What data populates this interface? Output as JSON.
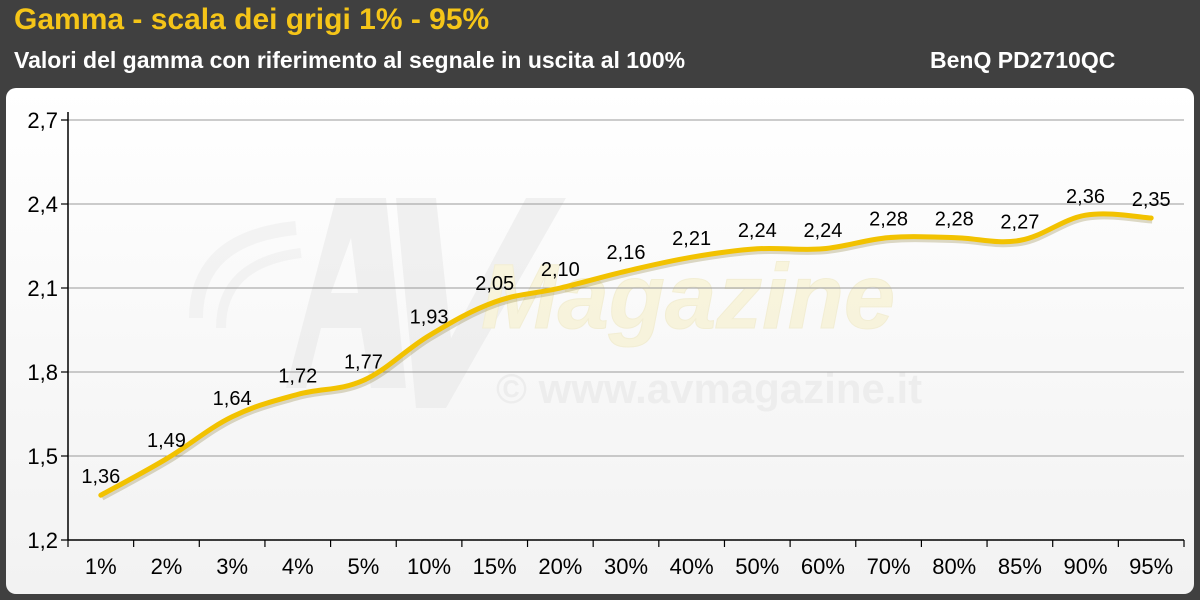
{
  "header": {
    "title": "Gamma - scala dei grigi 1% - 95%",
    "subtitle": "Valori del gamma con riferimento al segnale in uscita al 100%",
    "model": "BenQ PD2710QC"
  },
  "watermark": {
    "logo_text": "Magazine",
    "url_text": "© www.avmagazine.it"
  },
  "colors": {
    "background": "#404040",
    "title": "#f5c518",
    "line": "#f2c200",
    "grid": "#9a9a9a"
  },
  "chart_data": {
    "type": "line",
    "title": "Gamma - scala dei grigi 1% - 95%",
    "categories": [
      "1%",
      "2%",
      "3%",
      "4%",
      "5%",
      "10%",
      "15%",
      "20%",
      "30%",
      "40%",
      "50%",
      "60%",
      "70%",
      "80%",
      "85%",
      "90%",
      "95%"
    ],
    "series": [
      {
        "values": [
          1.36,
          1.49,
          1.64,
          1.72,
          1.77,
          1.93,
          2.05,
          2.1,
          2.16,
          2.21,
          2.24,
          2.24,
          2.28,
          2.28,
          2.27,
          2.36,
          2.35
        ],
        "labels": [
          "1,36",
          "1,49",
          "1,64",
          "1,72",
          "1,77",
          "1,93",
          "2,05",
          "2,10",
          "2,16",
          "2,21",
          "2,24",
          "2,24",
          "2,28",
          "2,28",
          "2,27",
          "2,36",
          "2,35"
        ]
      }
    ],
    "yticks": [
      1.2,
      1.5,
      1.8,
      2.1,
      2.4,
      2.7
    ],
    "ytick_labels": [
      "1,2",
      "1,5",
      "1,8",
      "2,1",
      "2,4",
      "2,7"
    ],
    "ylim": [
      1.2,
      2.7
    ],
    "grid": true,
    "legend": "none"
  }
}
